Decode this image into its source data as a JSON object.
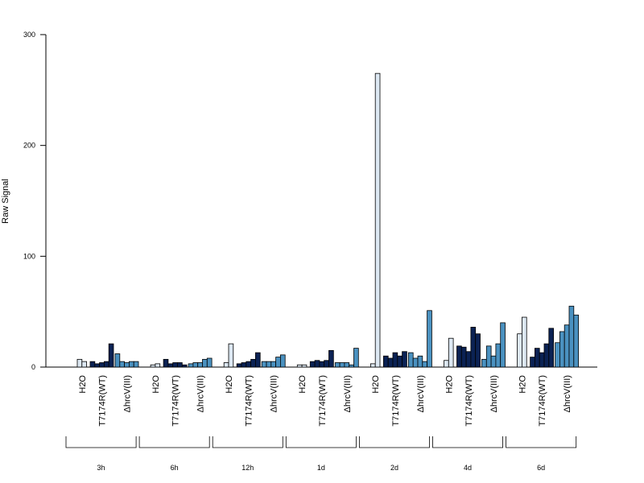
{
  "chart_data": {
    "type": "bar",
    "ylabel": "Raw Signal",
    "ylim": [
      0,
      300
    ],
    "yticks": [
      0,
      100,
      200,
      300
    ],
    "grid": false,
    "colors": {
      "H2O": "#dde8f3",
      "T7174R(WT)": "#0b2254",
      "ΔhrcV(III)": "#4a91c0"
    },
    "timepoints": [
      {
        "label": "3h",
        "groups": [
          {
            "name": "H2O",
            "values": [
              7,
              5
            ]
          },
          {
            "name": "T7174R(WT)",
            "values": [
              5,
              3,
              4,
              5,
              21
            ]
          },
          {
            "name": "ΔhrcV(III)",
            "values": [
              12,
              5,
              4,
              5,
              5
            ]
          }
        ]
      },
      {
        "label": "6h",
        "groups": [
          {
            "name": "H2O",
            "values": [
              2,
              3
            ]
          },
          {
            "name": "T7174R(WT)",
            "values": [
              7,
              3,
              4,
              4,
              2
            ]
          },
          {
            "name": "ΔhrcV(III)",
            "values": [
              3,
              4,
              4,
              7,
              8
            ]
          }
        ]
      },
      {
        "label": "12h",
        "groups": [
          {
            "name": "H2O",
            "values": [
              4,
              21
            ]
          },
          {
            "name": "T7174R(WT)",
            "values": [
              3,
              4,
              5,
              7,
              13
            ]
          },
          {
            "name": "ΔhrcV(III)",
            "values": [
              5,
              5,
              5,
              9,
              11
            ]
          }
        ]
      },
      {
        "label": "1d",
        "groups": [
          {
            "name": "H2O",
            "values": [
              2,
              2
            ]
          },
          {
            "name": "T7174R(WT)",
            "values": [
              5,
              6,
              5,
              6,
              15
            ]
          },
          {
            "name": "ΔhrcV(III)",
            "values": [
              4,
              4,
              4,
              2,
              17
            ]
          }
        ]
      },
      {
        "label": "2d",
        "groups": [
          {
            "name": "H2O",
            "values": [
              3,
              265
            ]
          },
          {
            "name": "T7174R(WT)",
            "values": [
              10,
              8,
              13,
              10,
              14
            ]
          },
          {
            "name": "ΔhrcV(III)",
            "values": [
              13,
              8,
              10,
              5,
              51
            ]
          }
        ]
      },
      {
        "label": "4d",
        "groups": [
          {
            "name": "H2O",
            "values": [
              6,
              26
            ]
          },
          {
            "name": "T7174R(WT)",
            "values": [
              19,
              18,
              14,
              36,
              30
            ]
          },
          {
            "name": "ΔhrcV(III)",
            "values": [
              7,
              19,
              10,
              21,
              40
            ]
          }
        ]
      },
      {
        "label": "6d",
        "groups": [
          {
            "name": "H2O",
            "values": [
              30,
              45
            ]
          },
          {
            "name": "T7174R(WT)",
            "values": [
              9,
              17,
              13,
              21,
              35
            ]
          },
          {
            "name": "ΔhrcV(III)",
            "values": [
              22,
              32,
              38,
              55,
              47
            ]
          }
        ]
      }
    ]
  }
}
